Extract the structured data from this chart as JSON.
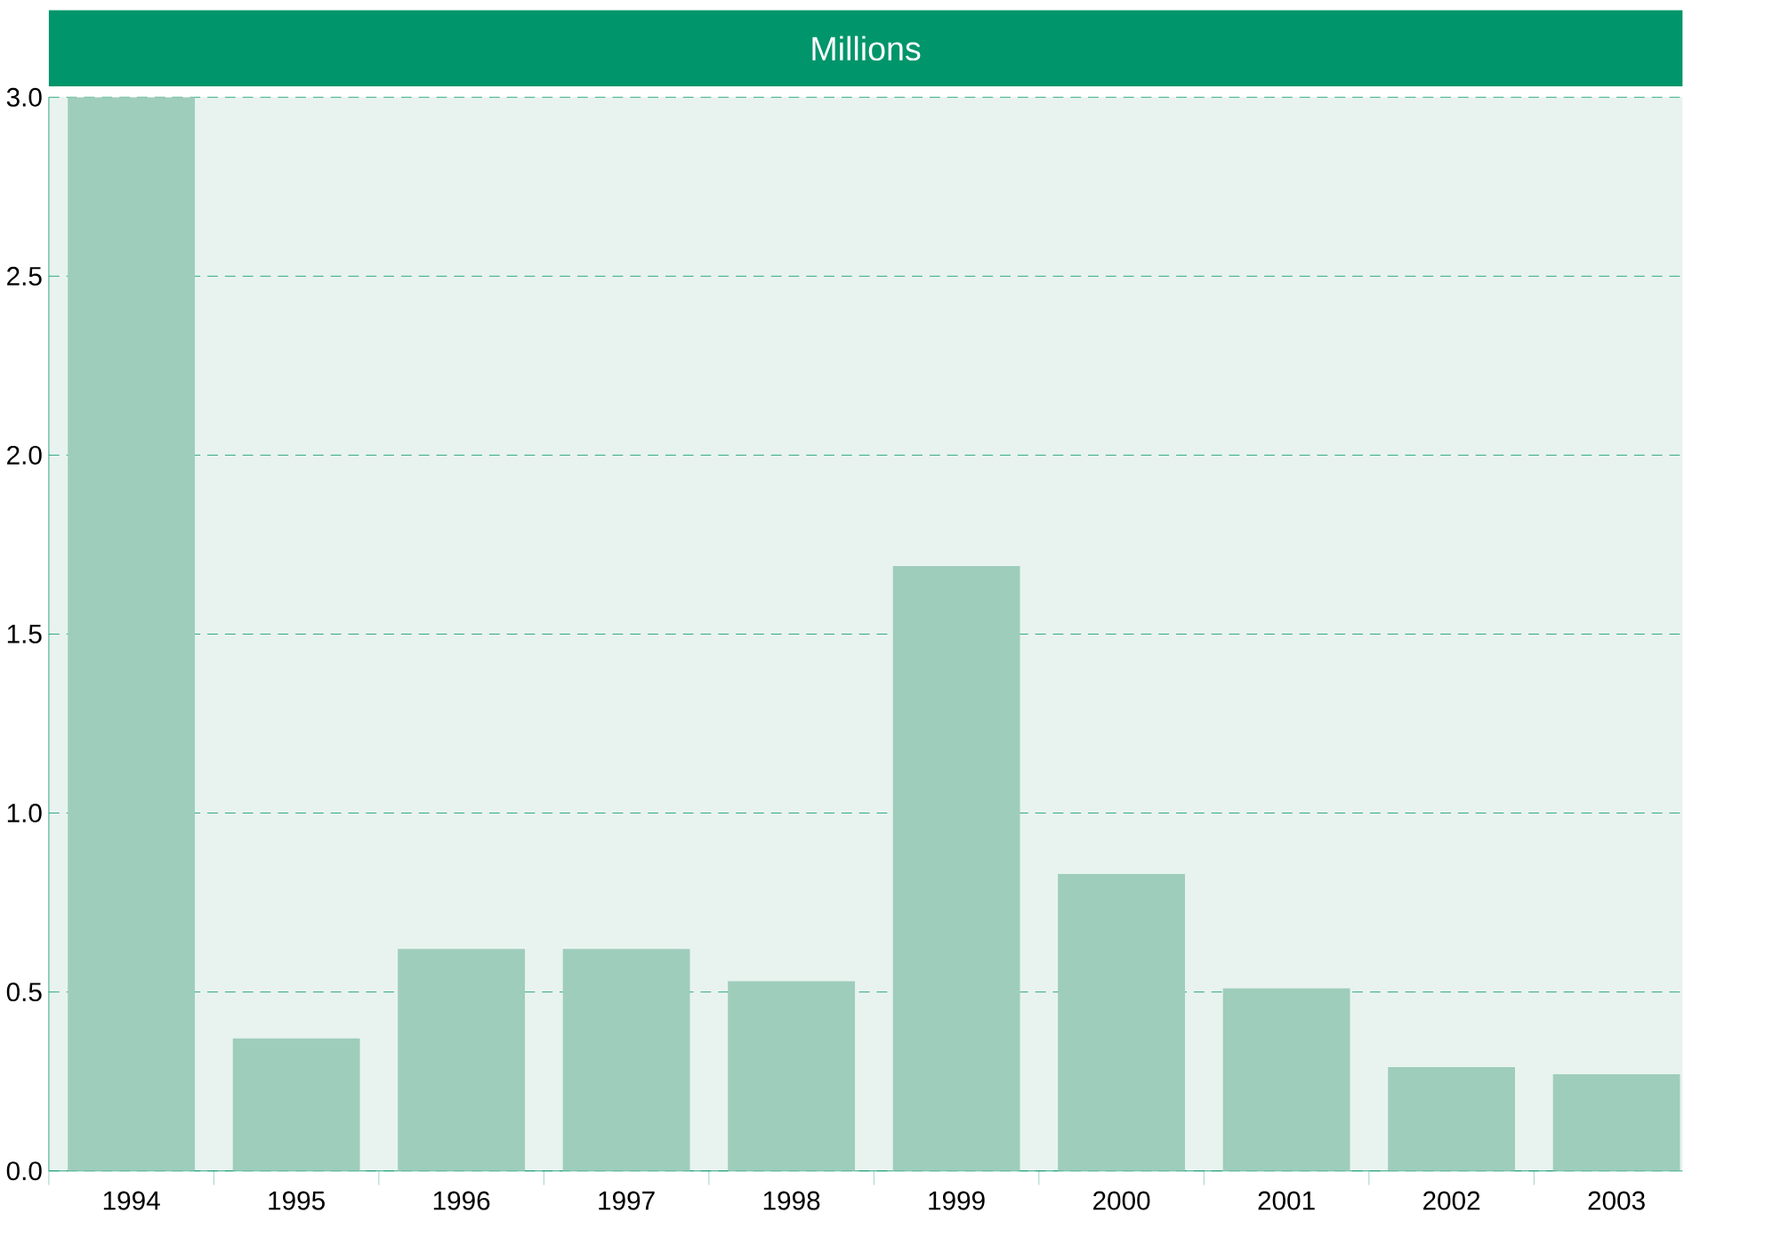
{
  "chart_data": {
    "type": "bar",
    "title": "Millions",
    "categories": [
      "1994",
      "1995",
      "1996",
      "1997",
      "1998",
      "1999",
      "2000",
      "2001",
      "2002",
      "2003"
    ],
    "values": [
      3.0,
      0.37,
      0.62,
      0.62,
      0.53,
      1.69,
      0.83,
      0.51,
      0.29,
      0.27
    ],
    "color": "#9ecdbb",
    "ylim": [
      0,
      3.0
    ],
    "yticks": [
      {
        "value": 0,
        "label": "0.0"
      },
      {
        "value": 0.5,
        "label": "0.5"
      },
      {
        "value": 1.0,
        "label": "1.0"
      },
      {
        "value": 1.5,
        "label": "1.5"
      },
      {
        "value": 2.0,
        "label": "2.0"
      },
      {
        "value": 2.5,
        "label": "2.5"
      },
      {
        "value": 3.0,
        "label": "3.0"
      }
    ],
    "grid": "y"
  }
}
